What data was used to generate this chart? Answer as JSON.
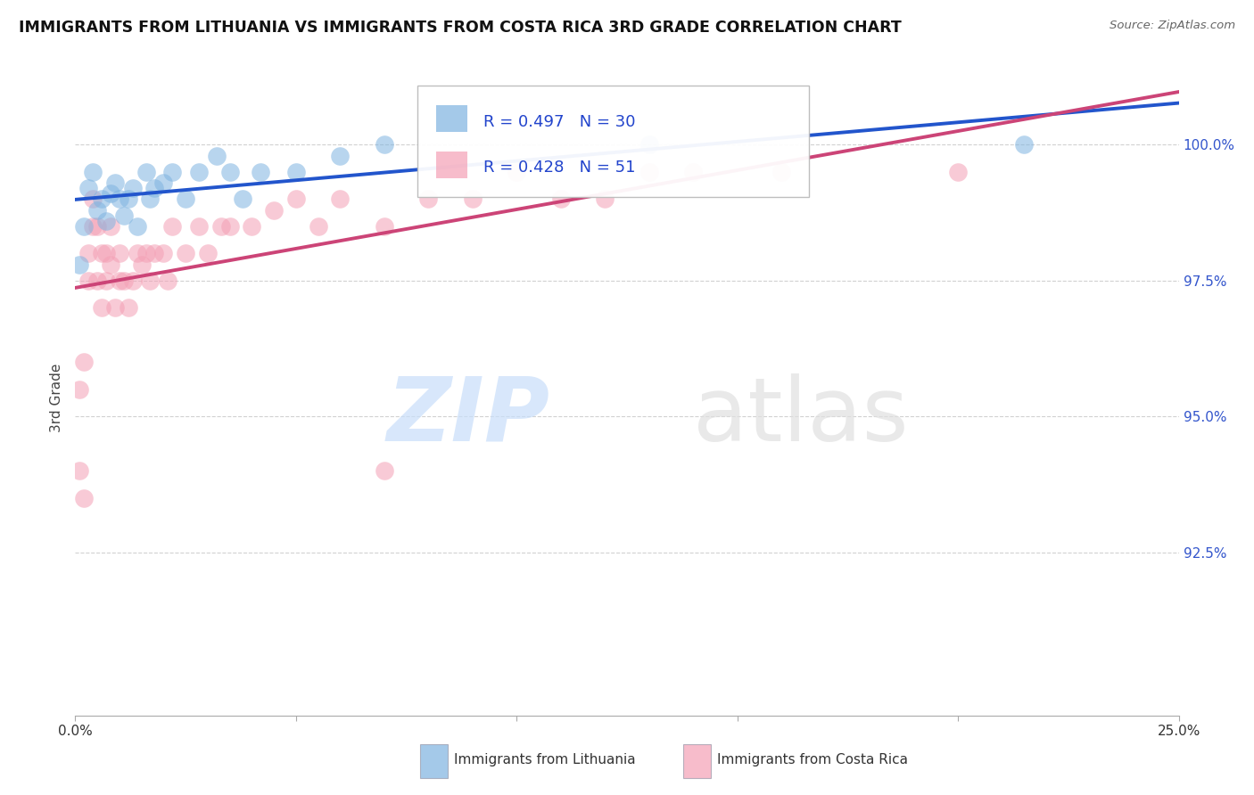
{
  "title": "IMMIGRANTS FROM LITHUANIA VS IMMIGRANTS FROM COSTA RICA 3RD GRADE CORRELATION CHART",
  "source_text": "Source: ZipAtlas.com",
  "ylabel": "3rd Grade",
  "watermark_zip": "ZIP",
  "watermark_atlas": "atlas",
  "right_ytick_labels": [
    "92.5%",
    "95.0%",
    "97.5%",
    "100.0%"
  ],
  "right_ytick_vals": [
    92.5,
    95.0,
    97.5,
    100.0
  ],
  "legend1_r": "R = 0.497",
  "legend1_n": "N = 30",
  "legend2_r": "R = 0.428",
  "legend2_n": "N = 51",
  "legend_series1": "Immigrants from Lithuania",
  "legend_series2": "Immigrants from Costa Rica",
  "lithuania_color": "#7EB3E0",
  "costa_rica_color": "#F4A0B5",
  "line_blue": "#2255CC",
  "line_pink": "#CC4477",
  "background_color": "#FFFFFF",
  "ylim_min": 89.5,
  "ylim_max": 101.2,
  "xlim_min": 0.0,
  "xlim_max": 0.25,
  "lithuania_x": [
    0.001,
    0.002,
    0.003,
    0.004,
    0.005,
    0.006,
    0.007,
    0.008,
    0.009,
    0.01,
    0.011,
    0.012,
    0.013,
    0.014,
    0.016,
    0.017,
    0.018,
    0.02,
    0.022,
    0.025,
    0.028,
    0.032,
    0.035,
    0.038,
    0.042,
    0.05,
    0.06,
    0.07,
    0.13,
    0.215
  ],
  "lithuania_y": [
    97.8,
    98.5,
    99.2,
    99.5,
    98.8,
    99.0,
    98.6,
    99.1,
    99.3,
    99.0,
    98.7,
    99.0,
    99.2,
    98.5,
    99.5,
    99.0,
    99.2,
    99.3,
    99.5,
    99.0,
    99.5,
    99.8,
    99.5,
    99.0,
    99.5,
    99.5,
    99.8,
    100.0,
    100.0,
    100.0
  ],
  "costa_rica_x": [
    0.001,
    0.001,
    0.002,
    0.002,
    0.003,
    0.003,
    0.004,
    0.004,
    0.005,
    0.005,
    0.006,
    0.006,
    0.007,
    0.007,
    0.008,
    0.008,
    0.009,
    0.01,
    0.01,
    0.011,
    0.012,
    0.013,
    0.014,
    0.015,
    0.016,
    0.017,
    0.018,
    0.02,
    0.021,
    0.022,
    0.025,
    0.028,
    0.03,
    0.033,
    0.035,
    0.04,
    0.045,
    0.05,
    0.055,
    0.06,
    0.07,
    0.08,
    0.09,
    0.1,
    0.11,
    0.12,
    0.13,
    0.14,
    0.16,
    0.2,
    0.07
  ],
  "costa_rica_y": [
    94.0,
    95.5,
    93.5,
    96.0,
    97.5,
    98.0,
    98.5,
    99.0,
    97.5,
    98.5,
    97.0,
    98.0,
    97.5,
    98.0,
    97.8,
    98.5,
    97.0,
    97.5,
    98.0,
    97.5,
    97.0,
    97.5,
    98.0,
    97.8,
    98.0,
    97.5,
    98.0,
    98.0,
    97.5,
    98.5,
    98.0,
    98.5,
    98.0,
    98.5,
    98.5,
    98.5,
    98.8,
    99.0,
    98.5,
    99.0,
    98.5,
    99.0,
    99.0,
    99.5,
    99.0,
    99.0,
    99.5,
    99.5,
    99.5,
    99.5,
    94.0
  ]
}
